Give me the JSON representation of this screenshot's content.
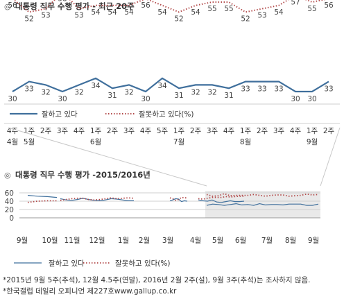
{
  "colors": {
    "approve": "#3f6f9c",
    "disapprove": "#b24a4a",
    "shade": "#e9e9e9",
    "grid": "#cfcfcf",
    "text": "#333333"
  },
  "chart_data": [
    {
      "type": "line",
      "title": "대통령 직무 수행 평가 - 최근 20주",
      "title_marker": "◎",
      "x": [
        "4주 4월",
        "1주 5월",
        "2주",
        "3주",
        "4주",
        "1주 6월",
        "2주",
        "3주",
        "4주",
        "5주",
        "1주 7월",
        "2주",
        "3주",
        "4주",
        "1주 8월",
        "2주",
        "3주",
        "4주",
        "1주 9월",
        "2주"
      ],
      "x_top": [
        "4주",
        "1주",
        "2주",
        "3주",
        "4주",
        "1주",
        "2주",
        "3주",
        "4주",
        "5주",
        "1주",
        "2주",
        "3주",
        "4주",
        "1주",
        "2주",
        "3주",
        "4주",
        "1주",
        "2주"
      ],
      "x_bottom": [
        "4월",
        "5월",
        "",
        "",
        "",
        "6월",
        "",
        "",
        "",
        "",
        "7월",
        "",
        "",
        "",
        "8월",
        "",
        "",
        "",
        "9월",
        ""
      ],
      "series": [
        {
          "name": "잘하고 있다",
          "style": "solid",
          "values": [
            30,
            33,
            32,
            30,
            32,
            34,
            31,
            32,
            30,
            34,
            31,
            32,
            32,
            31,
            33,
            33,
            33,
            30,
            30,
            33
          ]
        },
        {
          "name": "잘못하고 있다(%)",
          "style": "dotted",
          "values": [
            56,
            52,
            53,
            58,
            53,
            54,
            54,
            54,
            56,
            54,
            52,
            54,
            55,
            55,
            52,
            53,
            54,
            57,
            55,
            56
          ]
        }
      ],
      "legend": "bottom-left"
    },
    {
      "type": "line",
      "title": "대통령 직무 수행 평가 -2015/2016년",
      "title_marker": "◎",
      "y_ticks": [
        0,
        20,
        40,
        60
      ],
      "ylim": [
        0,
        65
      ],
      "month_labels": [
        "9월",
        "10월",
        "11월",
        "12월",
        "1월",
        "2월",
        "3월",
        "4월",
        "5월",
        "6월",
        "7월",
        "8월",
        "9월"
      ],
      "shaded_region_label": "최근 20주",
      "series": [
        {
          "name": "잘하고 있다",
          "style": "solid",
          "segments": [
            [
              54,
              52,
              51,
              49
            ],
            [
              46,
              43,
              42,
              44,
              47,
              44,
              42,
              41,
              43,
              46,
              45,
              43,
              41,
              41
            ],
            [
              41,
              43,
              46,
              45,
              39,
              41,
              40
            ],
            [
              43,
              41,
              40,
              43,
              38,
              37,
              39,
              41,
              39,
              39,
              40
            ],
            [
              30,
              33,
              32,
              30,
              32,
              34,
              31,
              32,
              30,
              34,
              31,
              32,
              32,
              31,
              33,
              33,
              33,
              30,
              30,
              33
            ]
          ]
        },
        {
          "name": "잘못하고 있다(%)",
          "style": "dotted",
          "segments": [
            [
              37,
              40,
              41,
              41
            ],
            [
              42,
              44,
              46,
              47,
              47,
              44,
              43,
              44,
              46,
              48,
              46,
              47,
              48,
              47
            ],
            [
              48,
              46,
              42,
              44,
              49,
              48,
              48
            ],
            [
              46,
              45,
              47,
              49,
              49,
              49,
              51,
              50,
              51,
              52,
              52
            ],
            [
              56,
              52,
              53,
              58,
              53,
              54,
              54,
              54,
              56,
              54,
              52,
              54,
              55,
              55,
              52,
              53,
              54,
              57,
              55,
              56
            ]
          ]
        }
      ],
      "legend": "bottom"
    }
  ],
  "footnotes": [
    "*2015년 9월 5주(추석), 12월 4.5주(연말), 2016년 2월 2주(설), 9월 3주(추석)는 조사하지 않음.",
    "*한국갤럽 데일리 오피니언 제227호www.gallup.co.kr"
  ]
}
